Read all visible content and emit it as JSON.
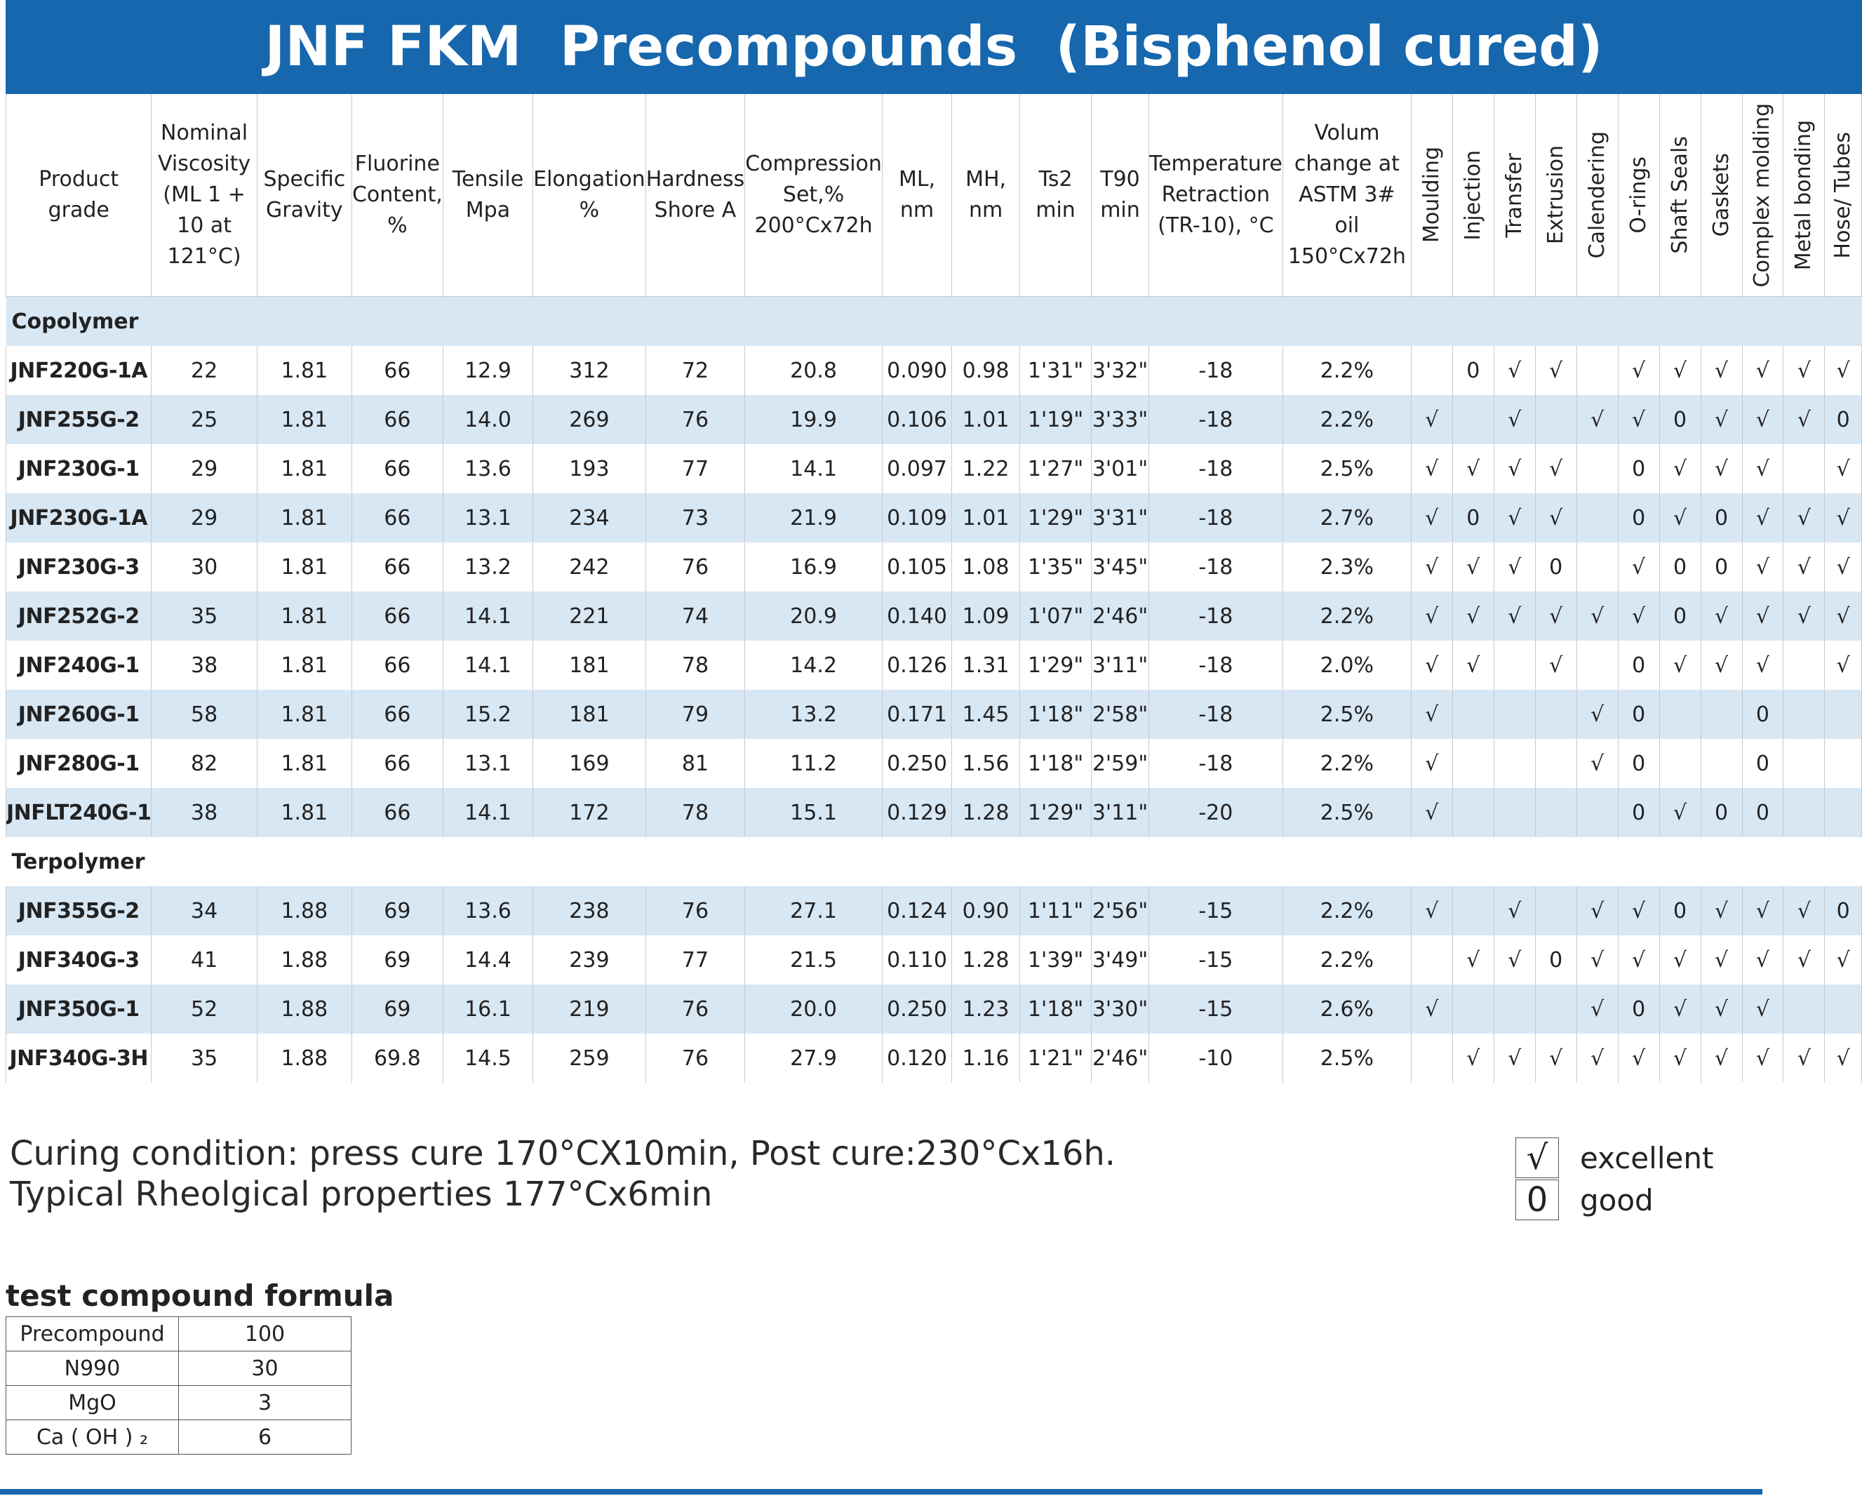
{
  "title": "JNF FKM  Precompounds  (Bisphenol cured)",
  "headers": {
    "grade": "Product grade",
    "viscosity": "Nominal Viscosity (ML 1 + 10 at 121°C)",
    "sg": "Specific Gravity",
    "fluorine": "Fluorine Content, %",
    "tensile": "Tensile Mpa",
    "elongation": "Elongation %",
    "hardness": "Hardness Shore A",
    "compression": "Compression Set,% 200°Cx72h",
    "ml": "ML, nm",
    "mh": "MH, nm",
    "ts2": "Ts2 min",
    "t90": "T90 min",
    "tr10": "Temperature Retraction (TR-10), °C",
    "volume": "Volum change at ASTM 3# oil 150°Cx72h",
    "apps": [
      "Moulding",
      "Injection",
      "Transfer",
      "Extrusion",
      "Calendering",
      "O-rings",
      "Shaft Seals",
      "Gaskets",
      "Complex molding",
      "Metal bonding",
      "Hose/ Tubes"
    ]
  },
  "sections": [
    {
      "name": "Copolymer",
      "rows": [
        {
          "grade": "JNF220G-1A",
          "visc": "22",
          "sg": "1.81",
          "f": "66",
          "ten": "12.9",
          "elong": "312",
          "hard": "72",
          "cs": "20.8",
          "ml": "0.090",
          "mh": "0.98",
          "ts2": "1'31\"",
          "t90": "3'32\"",
          "tr": "-18",
          "vol": "2.2%",
          "apps": [
            "",
            "0",
            "√",
            "√",
            "",
            "√",
            "√",
            "√",
            "√",
            "√",
            "√"
          ]
        },
        {
          "grade": "JNF255G-2",
          "visc": "25",
          "sg": "1.81",
          "f": "66",
          "ten": "14.0",
          "elong": "269",
          "hard": "76",
          "cs": "19.9",
          "ml": "0.106",
          "mh": "1.01",
          "ts2": "1'19\"",
          "t90": "3'33\"",
          "tr": "-18",
          "vol": "2.2%",
          "apps": [
            "√",
            "",
            "√",
            "",
            "√",
            "√",
            "0",
            "√",
            "√",
            "√",
            "0"
          ]
        },
        {
          "grade": "JNF230G-1",
          "visc": "29",
          "sg": "1.81",
          "f": "66",
          "ten": "13.6",
          "elong": "193",
          "hard": "77",
          "cs": "14.1",
          "ml": "0.097",
          "mh": "1.22",
          "ts2": "1'27\"",
          "t90": "3'01\"",
          "tr": "-18",
          "vol": "2.5%",
          "apps": [
            "√",
            "√",
            "√",
            "√",
            "",
            "0",
            "√",
            "√",
            "√",
            "",
            "√"
          ]
        },
        {
          "grade": "JNF230G-1A",
          "visc": "29",
          "sg": "1.81",
          "f": "66",
          "ten": "13.1",
          "elong": "234",
          "hard": "73",
          "cs": "21.9",
          "ml": "0.109",
          "mh": "1.01",
          "ts2": "1'29\"",
          "t90": "3'31\"",
          "tr": "-18",
          "vol": "2.7%",
          "apps": [
            "√",
            "0",
            "√",
            "√",
            "",
            "0",
            "√",
            "0",
            "√",
            "√",
            "√"
          ]
        },
        {
          "grade": "JNF230G-3",
          "visc": "30",
          "sg": "1.81",
          "f": "66",
          "ten": "13.2",
          "elong": "242",
          "hard": "76",
          "cs": "16.9",
          "ml": "0.105",
          "mh": "1.08",
          "ts2": "1'35\"",
          "t90": "3'45\"",
          "tr": "-18",
          "vol": "2.3%",
          "apps": [
            "√",
            "√",
            "√",
            "0",
            "",
            "√",
            "0",
            "0",
            "√",
            "√",
            "√"
          ]
        },
        {
          "grade": "JNF252G-2",
          "visc": "35",
          "sg": "1.81",
          "f": "66",
          "ten": "14.1",
          "elong": "221",
          "hard": "74",
          "cs": "20.9",
          "ml": "0.140",
          "mh": "1.09",
          "ts2": "1'07\"",
          "t90": "2'46\"",
          "tr": "-18",
          "vol": "2.2%",
          "apps": [
            "√",
            "√",
            "√",
            "√",
            "√",
            "√",
            "0",
            "√",
            "√",
            "√",
            "√"
          ]
        },
        {
          "grade": "JNF240G-1",
          "visc": "38",
          "sg": "1.81",
          "f": "66",
          "ten": "14.1",
          "elong": "181",
          "hard": "78",
          "cs": "14.2",
          "ml": "0.126",
          "mh": "1.31",
          "ts2": "1'29\"",
          "t90": "3'11\"",
          "tr": "-18",
          "vol": "2.0%",
          "apps": [
            "√",
            "√",
            "",
            "√",
            "",
            "0",
            "√",
            "√",
            "√",
            "",
            "√"
          ]
        },
        {
          "grade": "JNF260G-1",
          "visc": "58",
          "sg": "1.81",
          "f": "66",
          "ten": "15.2",
          "elong": "181",
          "hard": "79",
          "cs": "13.2",
          "ml": "0.171",
          "mh": "1.45",
          "ts2": "1'18\"",
          "t90": "2'58\"",
          "tr": "-18",
          "vol": "2.5%",
          "apps": [
            "√",
            "",
            "",
            "",
            "√",
            "0",
            "",
            "",
            "0",
            "",
            ""
          ]
        },
        {
          "grade": "JNF280G-1",
          "visc": "82",
          "sg": "1.81",
          "f": "66",
          "ten": "13.1",
          "elong": "169",
          "hard": "81",
          "cs": "11.2",
          "ml": "0.250",
          "mh": "1.56",
          "ts2": "1'18\"",
          "t90": "2'59\"",
          "tr": "-18",
          "vol": "2.2%",
          "apps": [
            "√",
            "",
            "",
            "",
            "√",
            "0",
            "",
            "",
            "0",
            "",
            ""
          ]
        },
        {
          "grade": "JNFLT240G-1",
          "visc": "38",
          "sg": "1.81",
          "f": "66",
          "ten": "14.1",
          "elong": "172",
          "hard": "78",
          "cs": "15.1",
          "ml": "0.129",
          "mh": "1.28",
          "ts2": "1'29\"",
          "t90": "3'11\"",
          "tr": "-20",
          "vol": "2.5%",
          "apps": [
            "√",
            "",
            "",
            "",
            "",
            "0",
            "√",
            "0",
            "0",
            "",
            ""
          ]
        }
      ]
    },
    {
      "name": "Terpolymer",
      "rows": [
        {
          "grade": "JNF355G-2",
          "visc": "34",
          "sg": "1.88",
          "f": "69",
          "ten": "13.6",
          "elong": "238",
          "hard": "76",
          "cs": "27.1",
          "ml": "0.124",
          "mh": "0.90",
          "ts2": "1'11\"",
          "t90": "2'56\"",
          "tr": "-15",
          "vol": "2.2%",
          "apps": [
            "√",
            "",
            "√",
            "",
            "√",
            "√",
            "0",
            "√",
            "√",
            "√",
            "0"
          ]
        },
        {
          "grade": "JNF340G-3",
          "visc": "41",
          "sg": "1.88",
          "f": "69",
          "ten": "14.4",
          "elong": "239",
          "hard": "77",
          "cs": "21.5",
          "ml": "0.110",
          "mh": "1.28",
          "ts2": "1'39\"",
          "t90": "3'49\"",
          "tr": "-15",
          "vol": "2.2%",
          "apps": [
            "",
            "√",
            "√",
            "0",
            "√",
            "√",
            "√",
            "√",
            "√",
            "√",
            "√"
          ]
        },
        {
          "grade": "JNF350G-1",
          "visc": "52",
          "sg": "1.88",
          "f": "69",
          "ten": "16.1",
          "elong": "219",
          "hard": "76",
          "cs": "20.0",
          "ml": "0.250",
          "mh": "1.23",
          "ts2": "1'18\"",
          "t90": "3'30\"",
          "tr": "-15",
          "vol": "2.6%",
          "apps": [
            "√",
            "",
            "",
            "",
            "√",
            "0",
            "√",
            "√",
            "√",
            "",
            ""
          ]
        },
        {
          "grade": "JNF340G-3H",
          "visc": "35",
          "sg": "1.88",
          "f": "69.8",
          "ten": "14.5",
          "elong": "259",
          "hard": "76",
          "cs": "27.9",
          "ml": "0.120",
          "mh": "1.16",
          "ts2": "1'21\"",
          "t90": "2'46\"",
          "tr": "-10",
          "vol": "2.5%",
          "apps": [
            "",
            "√",
            "√",
            "√",
            "√",
            "√",
            "√",
            "√",
            "√",
            "√",
            "√"
          ]
        }
      ]
    }
  ],
  "notes": [
    "Curing condition: press cure 170°CX10min, Post cure:230°Cx16h.",
    "Typical Rheolgical properties 177°Cx6min"
  ],
  "legend": [
    {
      "symbol": "√",
      "label": "excellent"
    },
    {
      "symbol": "0",
      "label": "good"
    }
  ],
  "formula": {
    "title": "test compound formula",
    "rows": [
      {
        "name": "Precompound",
        "value": "100"
      },
      {
        "name": "N990",
        "value": "30"
      },
      {
        "name": "MgO",
        "value": "3"
      },
      {
        "name": "Ca ( OH ) ₂",
        "value": "6"
      }
    ]
  },
  "colors": {
    "brand": "#1667ad",
    "stripe": "#d8e7f4"
  }
}
